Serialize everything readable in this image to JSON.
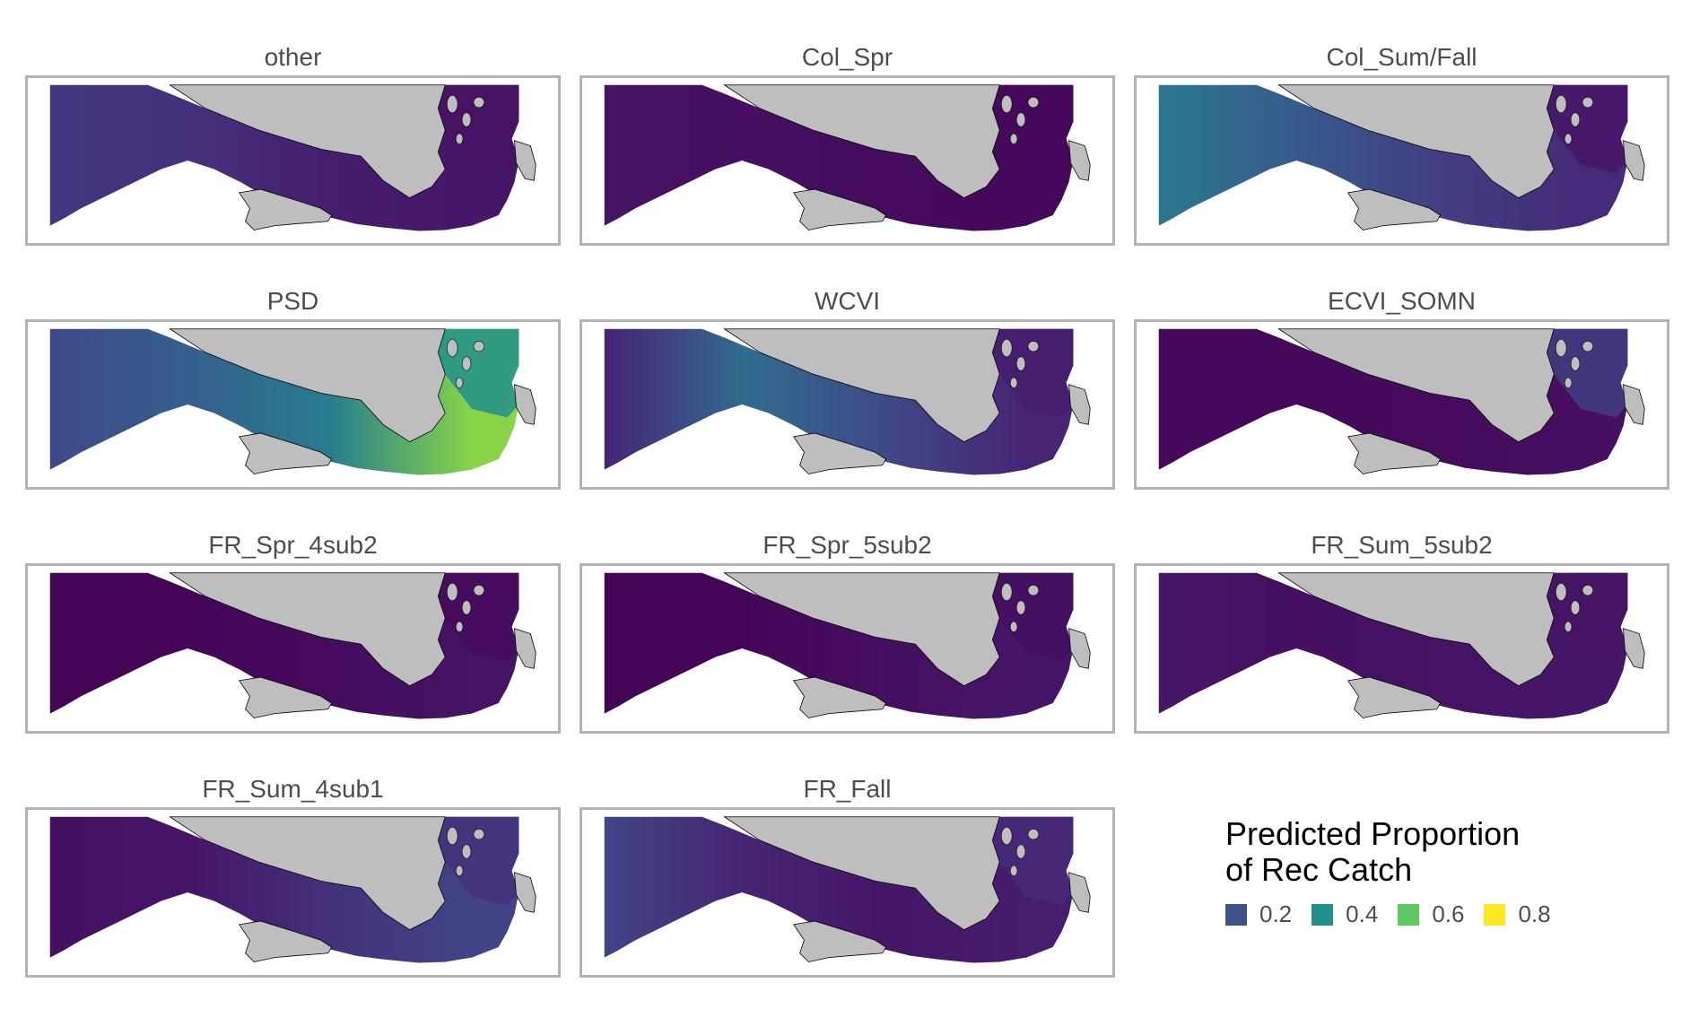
{
  "chart_data": {
    "type": "heatmap",
    "colormap": "viridis",
    "legend": {
      "title_line1": "Predicted Proportion",
      "title_line2": "of Rec Catch",
      "placement": "bottom-right",
      "breaks": [
        {
          "label": "0.2",
          "value": 0.2,
          "color": "#3b528b"
        },
        {
          "label": "0.4",
          "value": 0.4,
          "color": "#21918c"
        },
        {
          "label": "0.6",
          "value": 0.6,
          "color": "#5ec962"
        },
        {
          "label": "0.8",
          "value": 0.8,
          "color": "#fde725"
        }
      ]
    },
    "land_color": "#bebebe",
    "panels": [
      {
        "label": "other",
        "west": 0.16,
        "mid": 0.14,
        "channel": 0.08,
        "east": 0.06,
        "inlet": 0.05
      },
      {
        "label": "Col_Spr",
        "west": 0.05,
        "mid": 0.04,
        "channel": 0.03,
        "east": 0.02,
        "inlet": 0.02
      },
      {
        "label": "Col_Sum/Fall",
        "west": 0.4,
        "mid": 0.28,
        "channel": 0.18,
        "east": 0.12,
        "inlet": 0.06
      },
      {
        "label": "PSD",
        "west": 0.22,
        "mid": 0.3,
        "channel": 0.42,
        "east": 0.82,
        "inlet": 0.5
      },
      {
        "label": "WCVI",
        "west": 0.1,
        "mid": 0.35,
        "channel": 0.22,
        "east": 0.1,
        "inlet": 0.08
      },
      {
        "label": "ECVI_SOMN",
        "west": 0.02,
        "mid": 0.02,
        "channel": 0.03,
        "east": 0.04,
        "inlet": 0.18
      },
      {
        "label": "FR_Spr_4sub2",
        "west": 0.01,
        "mid": 0.01,
        "channel": 0.03,
        "east": 0.05,
        "inlet": 0.03
      },
      {
        "label": "FR_Spr_5sub2",
        "west": 0.01,
        "mid": 0.01,
        "channel": 0.04,
        "east": 0.06,
        "inlet": 0.04
      },
      {
        "label": "FR_Sum_5sub2",
        "west": 0.06,
        "mid": 0.04,
        "channel": 0.05,
        "east": 0.06,
        "inlet": 0.05
      },
      {
        "label": "FR_Sum_4sub1",
        "west": 0.04,
        "mid": 0.06,
        "channel": 0.14,
        "east": 0.2,
        "inlet": 0.14
      },
      {
        "label": "FR_Fall",
        "west": 0.2,
        "mid": 0.1,
        "channel": 0.06,
        "east": 0.08,
        "inlet": 0.12
      }
    ]
  }
}
